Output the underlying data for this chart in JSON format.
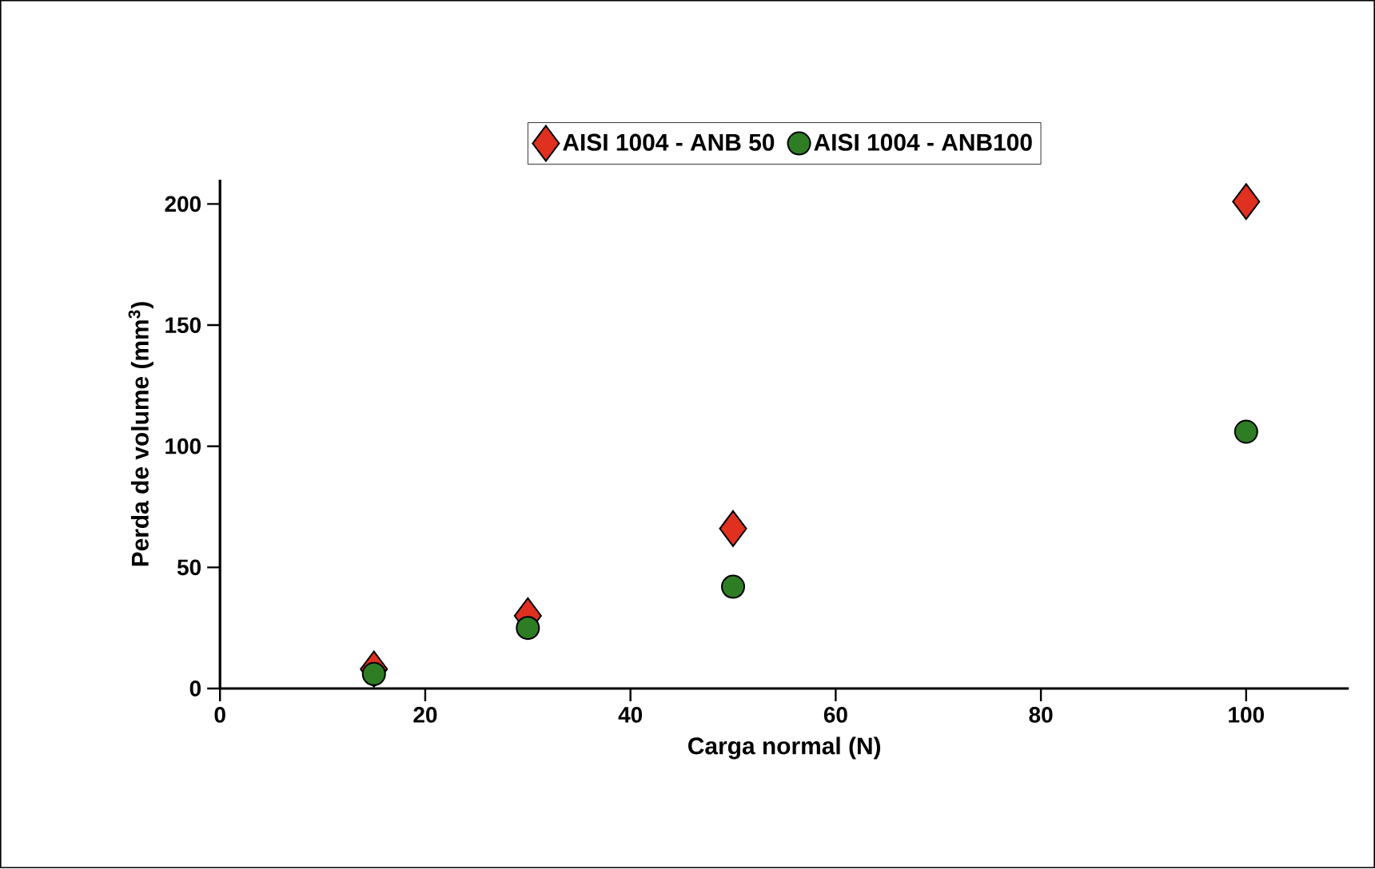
{
  "chart_data": {
    "type": "scatter",
    "xlabel": "Carga normal (N)",
    "ylabel": "Perda de volume (mm$^{3}$)",
    "xlim": [
      0,
      110
    ],
    "ylim": [
      0,
      210
    ],
    "xticks": [
      0,
      20,
      40,
      60,
      80,
      100
    ],
    "yticks": [
      0,
      50,
      100,
      150,
      200
    ],
    "legend": "top",
    "grid": false,
    "series": [
      {
        "name": "AISI 1004 - ANB 50",
        "color": "#e03020",
        "marker": "diamond",
        "x": [
          15,
          30,
          50,
          100
        ],
        "values": [
          8,
          30,
          66,
          201
        ]
      },
      {
        "name": "AISI 1004 - ANB100",
        "color": "#2e7d24",
        "marker": "circle",
        "x": [
          15,
          30,
          50,
          100
        ],
        "values": [
          6,
          25,
          42,
          106
        ]
      }
    ]
  }
}
